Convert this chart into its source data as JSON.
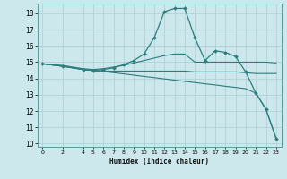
{
  "xlabel": "Humidex (Indice chaleur)",
  "xlim": [
    -0.5,
    23.5
  ],
  "ylim": [
    9.8,
    18.6
  ],
  "yticks": [
    10,
    11,
    12,
    13,
    14,
    15,
    16,
    17,
    18
  ],
  "xticks": [
    0,
    2,
    4,
    5,
    6,
    7,
    8,
    9,
    10,
    11,
    12,
    13,
    14,
    15,
    16,
    17,
    18,
    19,
    20,
    21,
    22,
    23
  ],
  "bg_color": "#cce8ec",
  "line_color": "#2d7d7d",
  "grid_color": "#aacfd4",
  "lines": [
    {
      "x": [
        0,
        2,
        4,
        5,
        6,
        7,
        8,
        9,
        10,
        11,
        12,
        13,
        14,
        15,
        16,
        17,
        18,
        19,
        20,
        21,
        22,
        23
      ],
      "y": [
        14.9,
        14.75,
        14.55,
        14.48,
        14.42,
        14.35,
        14.28,
        14.2,
        14.12,
        14.05,
        13.97,
        13.9,
        13.82,
        13.75,
        13.67,
        13.6,
        13.52,
        13.45,
        13.37,
        13.1,
        12.1,
        10.3
      ],
      "marker": false,
      "linewidth": 0.8
    },
    {
      "x": [
        0,
        2,
        4,
        5,
        6,
        7,
        8,
        9,
        10,
        11,
        12,
        13,
        14,
        15,
        16,
        17,
        18,
        19,
        20,
        21,
        22,
        23
      ],
      "y": [
        14.9,
        14.75,
        14.55,
        14.5,
        14.45,
        14.45,
        14.45,
        14.45,
        14.45,
        14.45,
        14.45,
        14.45,
        14.45,
        14.4,
        14.4,
        14.4,
        14.4,
        14.4,
        14.35,
        14.3,
        14.3,
        14.3
      ],
      "marker": false,
      "linewidth": 0.8
    },
    {
      "x": [
        0,
        2,
        4,
        5,
        6,
        7,
        8,
        9,
        10,
        11,
        12,
        13,
        14,
        15,
        16,
        17,
        18,
        19,
        20,
        21,
        22,
        23
      ],
      "y": [
        14.9,
        14.8,
        14.6,
        14.55,
        14.6,
        14.7,
        14.8,
        14.95,
        15.1,
        15.25,
        15.4,
        15.5,
        15.5,
        15.0,
        15.0,
        15.0,
        15.0,
        15.0,
        15.0,
        15.0,
        15.0,
        14.95
      ],
      "marker": false,
      "linewidth": 0.8
    },
    {
      "x": [
        0,
        2,
        4,
        5,
        6,
        7,
        8,
        9,
        10,
        11,
        12,
        13,
        14,
        15,
        16,
        17,
        18,
        19,
        20,
        21,
        22,
        23
      ],
      "y": [
        14.9,
        14.75,
        14.55,
        14.5,
        14.55,
        14.65,
        14.85,
        15.1,
        15.5,
        16.5,
        18.1,
        18.3,
        18.3,
        16.5,
        15.1,
        15.7,
        15.6,
        15.35,
        14.4,
        13.1,
        12.1,
        10.3
      ],
      "marker": true,
      "linewidth": 0.9
    }
  ]
}
